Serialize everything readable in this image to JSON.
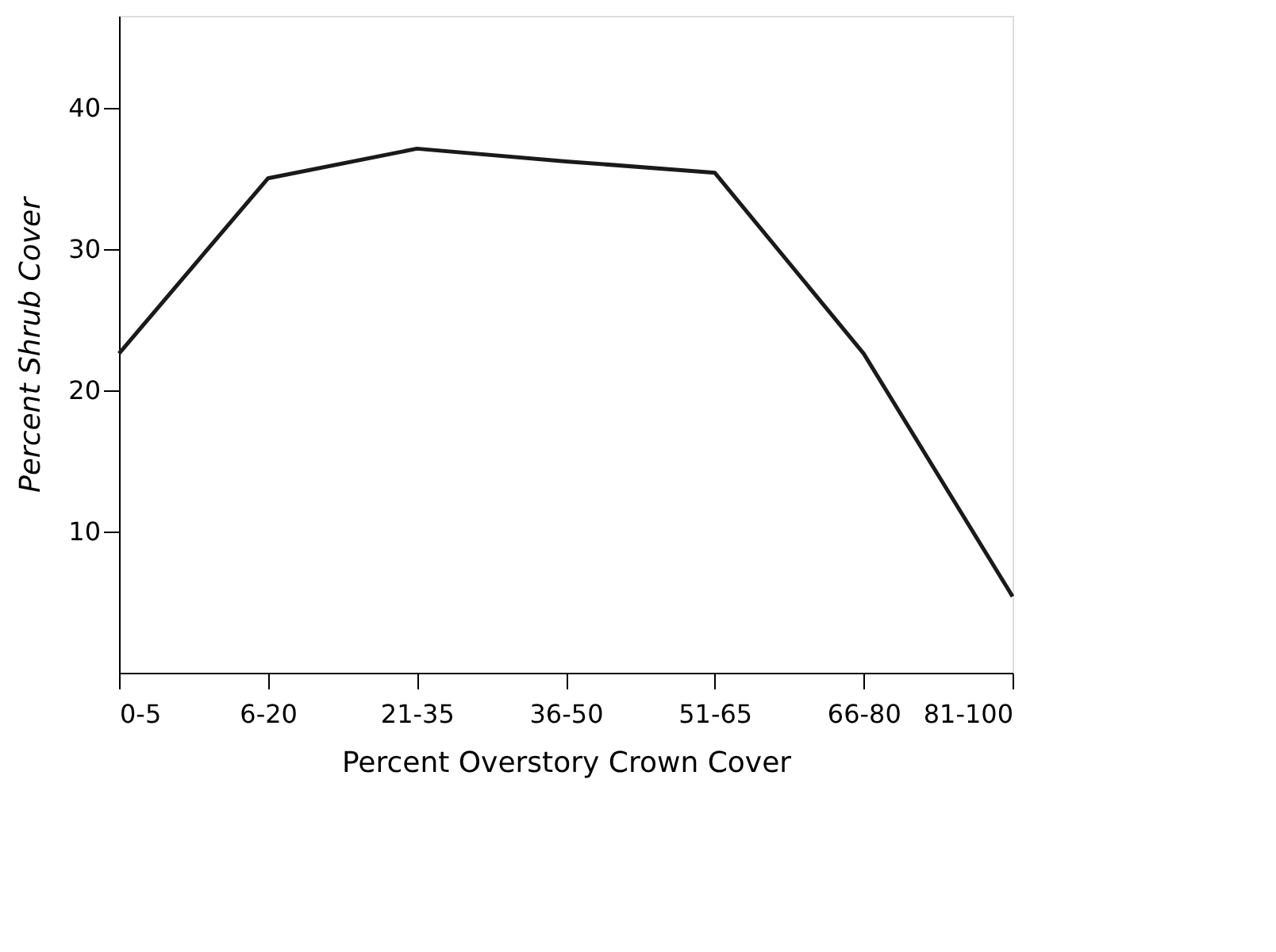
{
  "chart_data": {
    "type": "line",
    "xlabel": "Percent Overstory Crown Cover",
    "ylabel": "Percent Shrub Cover",
    "categories": [
      "0-5",
      "6-20",
      "21-35",
      "36-50",
      "51-65",
      "66-80",
      "81-100"
    ],
    "series": [
      {
        "color": "#1a1a1a",
        "values": [
          22.6,
          35.0,
          37.1,
          36.2,
          35.4,
          22.6,
          5.4
        ]
      }
    ],
    "ylim": [
      0,
      46.5
    ],
    "yticks": [
      10,
      20,
      30,
      40
    ],
    "grid": false,
    "marker": "none",
    "line_style": "solid"
  }
}
